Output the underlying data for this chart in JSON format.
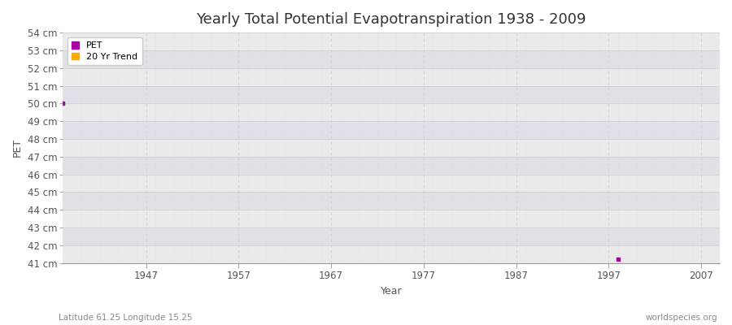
{
  "title": "Yearly Total Potential Evapotranspiration 1938 - 2009",
  "xlabel": "Year",
  "ylabel": "PET",
  "subtitle_left": "Latitude 61.25 Longitude 15.25",
  "subtitle_right": "worldspecies.org",
  "ylim": [
    41,
    54
  ],
  "xlim": [
    1938,
    2009
  ],
  "yticks": [
    41,
    42,
    43,
    44,
    45,
    46,
    47,
    48,
    49,
    50,
    51,
    52,
    53,
    54
  ],
  "xticks": [
    1947,
    1957,
    1967,
    1977,
    1987,
    1997,
    2007
  ],
  "pet_data": [
    [
      1938,
      50.0
    ],
    [
      1998,
      41.2
    ]
  ],
  "pet_color": "#aa00aa",
  "trend_color": "#ffaa00",
  "figure_bg": "#ffffff",
  "band_light": "#eaeaea",
  "band_dark": "#e0e0e6",
  "grid_color_v": "#d0d0d8",
  "legend_labels": [
    "PET",
    "20 Yr Trend"
  ],
  "title_fontsize": 13,
  "axis_fontsize": 8.5,
  "label_fontsize": 9,
  "tick_color": "#aaaaaa",
  "text_color": "#555555"
}
